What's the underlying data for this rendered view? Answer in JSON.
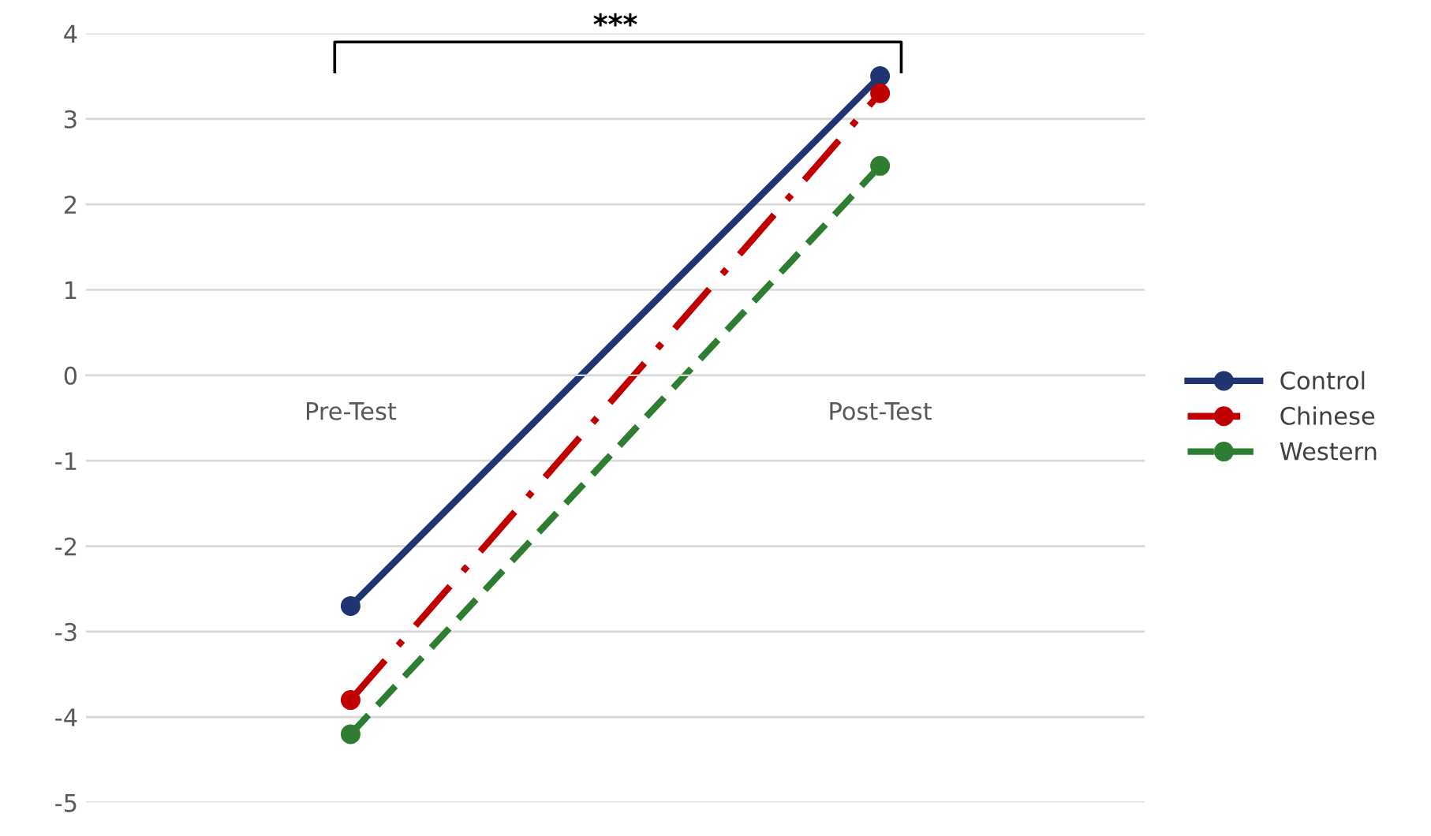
{
  "chart_data": {
    "type": "line",
    "categories": [
      "Pre-Test",
      "Post-Test"
    ],
    "series": [
      {
        "name": "Control",
        "color": "#1f3470",
        "values": [
          -2.7,
          3.5
        ],
        "line_style": "solid"
      },
      {
        "name": "Chinese",
        "color": "#c00000",
        "values": [
          -3.8,
          3.3
        ],
        "line_style": "dashdot"
      },
      {
        "name": "Western",
        "color": "#2e7d32",
        "values": [
          -4.2,
          2.45
        ],
        "line_style": "dashed"
      }
    ],
    "ylim": [
      -5,
      4
    ],
    "yticks": [
      -5,
      -4,
      -3,
      -2,
      -1,
      0,
      1,
      2,
      3,
      4
    ],
    "grid": "y",
    "legend": "right",
    "marker": "circle",
    "annotations": [
      "***"
    ]
  }
}
